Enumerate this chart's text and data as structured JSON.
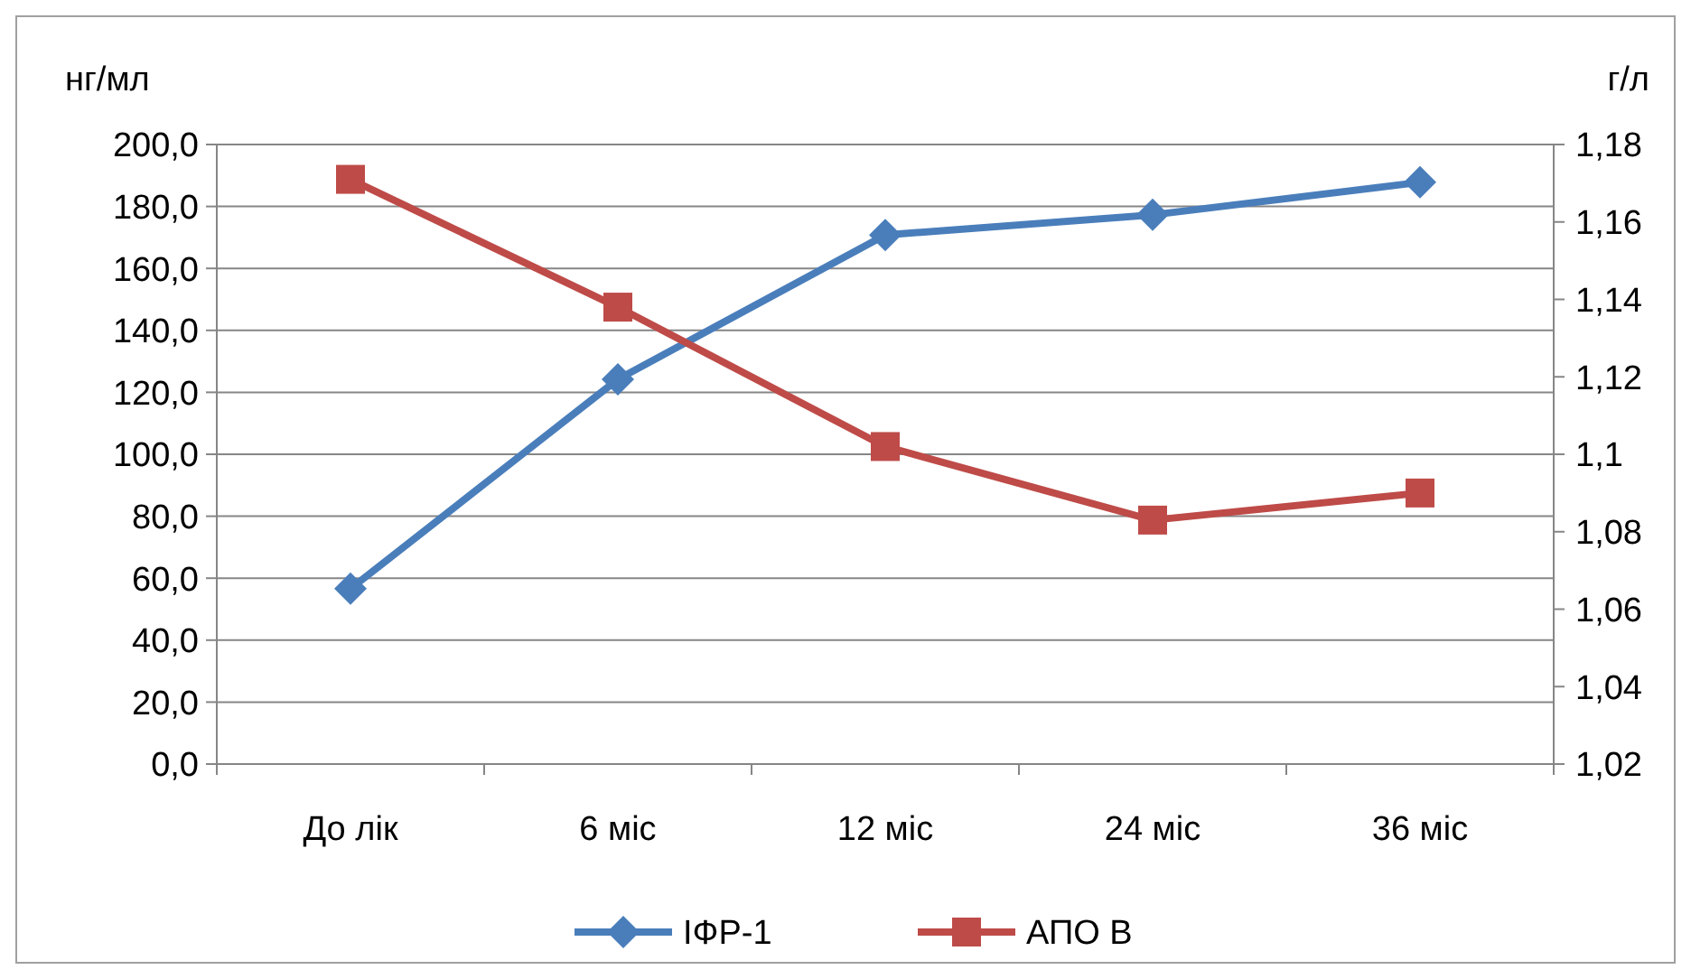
{
  "chart_data": {
    "type": "line",
    "ylabel": "нг/мл",
    "y2label": "г/л",
    "categories": [
      "До лік",
      "6 міс",
      "12 міс",
      "24 міс",
      "36 міс"
    ],
    "series": [
      {
        "name": "ІФР-1",
        "color": "#4a7ebb",
        "marker": "diamond",
        "values": [
          56.6,
          124.2,
          170.8,
          177.3,
          187.8
        ]
      },
      {
        "name": "АПО B",
        "color": "#be4b48",
        "marker": "square",
        "axis": "y2",
        "values": [
          1.171,
          1.138,
          1.102,
          1.083,
          1.09
        ]
      }
    ],
    "ylim": [
      0,
      200
    ],
    "yticks": [
      {
        "value": 0,
        "label": "0,0"
      },
      {
        "value": 20,
        "label": "20,0"
      },
      {
        "value": 40,
        "label": "40,0"
      },
      {
        "value": 60,
        "label": "60,0"
      },
      {
        "value": 80,
        "label": "80,0"
      },
      {
        "value": 100,
        "label": "100,0"
      },
      {
        "value": 120,
        "label": "120,0"
      },
      {
        "value": 140,
        "label": "140,0"
      },
      {
        "value": 160,
        "label": "160,0"
      },
      {
        "value": 180,
        "label": "180,0"
      },
      {
        "value": 200,
        "label": "200,0"
      }
    ],
    "y2lim": [
      1.02,
      1.18
    ],
    "y2ticks": [
      {
        "value": 1.02,
        "label": "1,02"
      },
      {
        "value": 1.04,
        "label": "1,04"
      },
      {
        "value": 1.06,
        "label": "1,06"
      },
      {
        "value": 1.08,
        "label": "1,08"
      },
      {
        "value": 1.1,
        "label": "1,1"
      },
      {
        "value": 1.12,
        "label": "1,12"
      },
      {
        "value": 1.14,
        "label": "1,14"
      },
      {
        "value": 1.16,
        "label": "1,16"
      },
      {
        "value": 1.18,
        "label": "1,18"
      }
    ],
    "grid": "y",
    "legend": "bottom",
    "line_style": "solid"
  }
}
